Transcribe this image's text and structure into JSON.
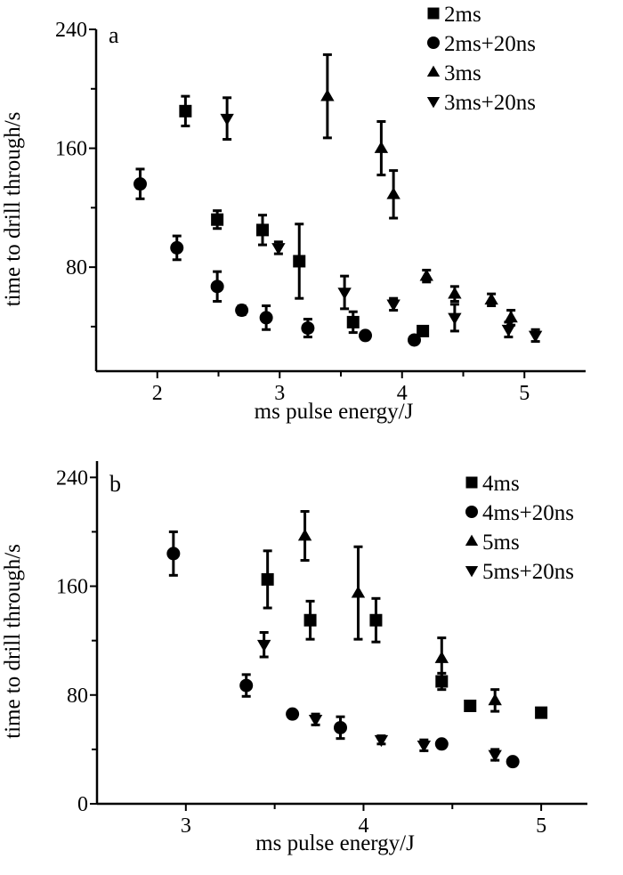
{
  "chart_data": [
    {
      "type": "scatter",
      "panel_label": "a",
      "xlabel": "ms pulse energy/J",
      "ylabel": "time to drill through/s",
      "xlim": [
        1.5,
        5.5
      ],
      "ylim": [
        10,
        240
      ],
      "xticks": [
        2,
        3,
        4,
        5
      ],
      "xminor": [
        2.5,
        3.5,
        4.5
      ],
      "yticks": [
        80,
        160,
        240
      ],
      "yminor": [
        40,
        120,
        200
      ],
      "grid": false,
      "legend_placement": "top-right",
      "error_bars": true,
      "series": [
        {
          "name": "2ms",
          "marker": "square",
          "points": [
            {
              "x": 2.23,
              "y": 185,
              "err": 10
            },
            {
              "x": 2.49,
              "y": 112,
              "err": 6
            },
            {
              "x": 2.86,
              "y": 105,
              "err": 10
            },
            {
              "x": 3.16,
              "y": 84,
              "err": 25
            },
            {
              "x": 3.6,
              "y": 43,
              "err": 7
            },
            {
              "x": 4.17,
              "y": 37,
              "err": 2
            }
          ]
        },
        {
          "name": "2ms+20ns",
          "marker": "circle",
          "points": [
            {
              "x": 1.86,
              "y": 136,
              "err": 10
            },
            {
              "x": 2.16,
              "y": 93,
              "err": 8
            },
            {
              "x": 2.49,
              "y": 67,
              "err": 10
            },
            {
              "x": 2.69,
              "y": 51,
              "err": 3
            },
            {
              "x": 2.89,
              "y": 46,
              "err": 8
            },
            {
              "x": 3.23,
              "y": 39,
              "err": 6
            },
            {
              "x": 3.7,
              "y": 34,
              "err": 2
            },
            {
              "x": 4.1,
              "y": 31,
              "err": 2
            }
          ]
        },
        {
          "name": "3ms",
          "marker": "triangle-up",
          "points": [
            {
              "x": 3.39,
              "y": 195,
              "err": 28
            },
            {
              "x": 3.83,
              "y": 160,
              "err": 18
            },
            {
              "x": 3.93,
              "y": 129,
              "err": 16
            },
            {
              "x": 4.2,
              "y": 74,
              "err": 4
            },
            {
              "x": 4.43,
              "y": 62,
              "err": 5
            },
            {
              "x": 4.73,
              "y": 58,
              "err": 4
            },
            {
              "x": 4.89,
              "y": 46,
              "err": 5
            }
          ]
        },
        {
          "name": "3ms+20ns",
          "marker": "triangle-down",
          "points": [
            {
              "x": 2.57,
              "y": 180,
              "err": 14
            },
            {
              "x": 2.99,
              "y": 93,
              "err": 4
            },
            {
              "x": 3.53,
              "y": 63,
              "err": 11
            },
            {
              "x": 3.93,
              "y": 55,
              "err": 4
            },
            {
              "x": 4.43,
              "y": 46,
              "err": 9
            },
            {
              "x": 4.87,
              "y": 38,
              "err": 5
            },
            {
              "x": 5.09,
              "y": 34,
              "err": 4
            }
          ]
        }
      ]
    },
    {
      "type": "scatter",
      "panel_label": "b",
      "xlabel": "ms pulse energy/J",
      "ylabel": "time to drill through/s",
      "xlim": [
        2.5,
        5.26
      ],
      "ylim": [
        0,
        252
      ],
      "xticks": [
        3,
        4,
        5
      ],
      "xminor": [
        3.5,
        4.5
      ],
      "yticks": [
        0,
        80,
        160,
        240
      ],
      "yminor": [
        40,
        120,
        200
      ],
      "grid": false,
      "legend_placement": "top-right",
      "error_bars": true,
      "series": [
        {
          "name": "4ms",
          "marker": "square",
          "points": [
            {
              "x": 3.46,
              "y": 165,
              "err": 21
            },
            {
              "x": 3.7,
              "y": 135,
              "err": 14
            },
            {
              "x": 4.07,
              "y": 135,
              "err": 16
            },
            {
              "x": 4.44,
              "y": 90,
              "err": 6
            },
            {
              "x": 4.6,
              "y": 72,
              "err": 2
            },
            {
              "x": 5.0,
              "y": 67,
              "err": 2
            }
          ]
        },
        {
          "name": "4ms+20ns",
          "marker": "circle",
          "points": [
            {
              "x": 2.93,
              "y": 184,
              "err": 16
            },
            {
              "x": 3.34,
              "y": 87,
              "err": 8
            },
            {
              "x": 3.6,
              "y": 66,
              "err": 2
            },
            {
              "x": 3.87,
              "y": 56,
              "err": 8
            },
            {
              "x": 4.44,
              "y": 44,
              "err": 2
            },
            {
              "x": 4.84,
              "y": 31,
              "err": 2
            }
          ]
        },
        {
          "name": "5ms",
          "marker": "triangle-up",
          "points": [
            {
              "x": 3.67,
              "y": 197,
              "err": 18
            },
            {
              "x": 3.97,
              "y": 155,
              "err": 34
            },
            {
              "x": 4.44,
              "y": 107,
              "err": 15
            },
            {
              "x": 4.74,
              "y": 76,
              "err": 8
            }
          ]
        },
        {
          "name": "5ms+20ns",
          "marker": "triangle-down",
          "points": [
            {
              "x": 3.44,
              "y": 117,
              "err": 9
            },
            {
              "x": 3.73,
              "y": 62,
              "err": 4
            },
            {
              "x": 4.1,
              "y": 47,
              "err": 3
            },
            {
              "x": 4.34,
              "y": 43,
              "err": 4
            },
            {
              "x": 4.74,
              "y": 36,
              "err": 4
            }
          ]
        }
      ]
    }
  ]
}
